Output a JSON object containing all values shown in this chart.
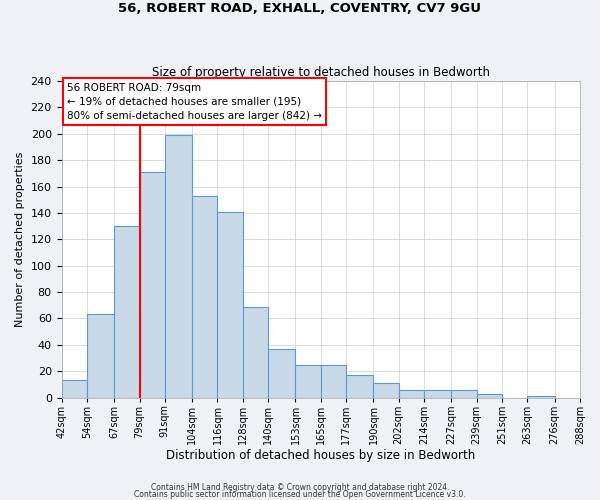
{
  "title": "56, ROBERT ROAD, EXHALL, COVENTRY, CV7 9GU",
  "subtitle": "Size of property relative to detached houses in Bedworth",
  "xlabel": "Distribution of detached houses by size in Bedworth",
  "ylabel": "Number of detached properties",
  "bar_left_edges": [
    42,
    54,
    67,
    79,
    91,
    104,
    116,
    128,
    140,
    153,
    165,
    177,
    190,
    202,
    214,
    227,
    239,
    251,
    263,
    276
  ],
  "bar_heights": [
    13,
    63,
    130,
    171,
    199,
    153,
    141,
    69,
    37,
    25,
    25,
    17,
    11,
    6,
    6,
    6,
    3,
    0,
    1,
    0
  ],
  "bar_widths": [
    12,
    13,
    12,
    12,
    13,
    12,
    12,
    12,
    13,
    12,
    12,
    13,
    12,
    12,
    13,
    12,
    12,
    12,
    13,
    12
  ],
  "tick_labels": [
    "42sqm",
    "54sqm",
    "67sqm",
    "79sqm",
    "91sqm",
    "104sqm",
    "116sqm",
    "128sqm",
    "140sqm",
    "153sqm",
    "165sqm",
    "177sqm",
    "190sqm",
    "202sqm",
    "214sqm",
    "227sqm",
    "239sqm",
    "251sqm",
    "263sqm",
    "276sqm",
    "288sqm"
  ],
  "bar_color": "#c9d9e8",
  "bar_edge_color": "#5b9bd5",
  "red_line_x": 79,
  "ylim": [
    0,
    240
  ],
  "yticks": [
    0,
    20,
    40,
    60,
    80,
    100,
    120,
    140,
    160,
    180,
    200,
    220,
    240
  ],
  "annotation_title": "56 ROBERT ROAD: 79sqm",
  "annotation_line1": "← 19% of detached houses are smaller (195)",
  "annotation_line2": "80% of semi-detached houses are larger (842) →",
  "footer1": "Contains HM Land Registry data © Crown copyright and database right 2024.",
  "footer2": "Contains public sector information licensed under the Open Government Licence v3.0.",
  "bg_color": "#eef2f7",
  "plot_bg_color": "#ffffff",
  "grid_color": "#c8d0dc"
}
